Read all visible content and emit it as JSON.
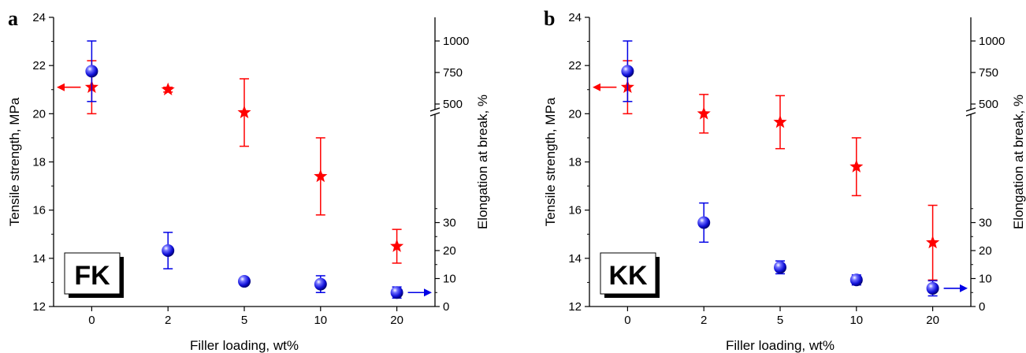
{
  "colors": {
    "tensile": "#ff0000",
    "elongation": "#0000e6",
    "axis": "#000000"
  },
  "chart_data": [
    {
      "type": "scatter",
      "panel_label": "a",
      "box_label": "FK",
      "categories": [
        "0",
        "2",
        "5",
        "10",
        "20"
      ],
      "xlabel": "Filler loading, wt%",
      "ylabel": "Tensile strength, MPa",
      "y2label": "Elongation at break, %",
      "ylim": [
        12,
        24
      ],
      "yticks": [
        "12",
        "14",
        "16",
        "18",
        "20",
        "22",
        "24"
      ],
      "y2_lower": {
        "range": [
          0,
          40
        ],
        "ticks": [
          "0",
          "10",
          "20",
          "30"
        ]
      },
      "y2_upper": {
        "range": [
          500,
          1000
        ],
        "ticks": [
          "500",
          "750",
          "1000"
        ]
      },
      "y2_axis_break": true,
      "series": [
        {
          "marker": "star",
          "axis": "left",
          "color": "#ff0000",
          "values": [
            21.1,
            21.0,
            20.05,
            17.4,
            14.5
          ],
          "errors": [
            1.1,
            0.1,
            1.4,
            1.6,
            0.7
          ]
        },
        {
          "marker": "sphere",
          "axis": "right",
          "color": "#0000e6",
          "values": [
            760,
            20,
            9,
            8,
            5
          ],
          "errors": [
            240,
            6.5,
            1.2,
            3,
            2
          ]
        }
      ],
      "arrows": [
        {
          "series": 0,
          "direction": "left"
        },
        {
          "series": 1,
          "direction": "right"
        }
      ]
    },
    {
      "type": "scatter",
      "panel_label": "b",
      "box_label": "KK",
      "categories": [
        "0",
        "2",
        "5",
        "10",
        "20"
      ],
      "xlabel": "Filler loading, wt%",
      "ylabel": "Tensile strength, MPa",
      "y2label": "Elongation at break, %",
      "ylim": [
        12,
        24
      ],
      "yticks": [
        "12",
        "14",
        "16",
        "18",
        "20",
        "22",
        "24"
      ],
      "y2_lower": {
        "range": [
          0,
          40
        ],
        "ticks": [
          "0",
          "10",
          "20",
          "30"
        ]
      },
      "y2_upper": {
        "range": [
          500,
          1000
        ],
        "ticks": [
          "500",
          "750",
          "1000"
        ]
      },
      "y2_axis_break": true,
      "series": [
        {
          "marker": "star",
          "axis": "left",
          "color": "#ff0000",
          "values": [
            21.1,
            20.0,
            19.65,
            17.8,
            14.65
          ],
          "errors": [
            1.1,
            0.8,
            1.1,
            1.2,
            1.55
          ]
        },
        {
          "marker": "sphere",
          "axis": "right",
          "color": "#0000e6",
          "values": [
            760,
            30,
            14,
            9.5,
            6.5
          ],
          "errors": [
            240,
            7,
            2.3,
            1.8,
            2.7
          ]
        }
      ],
      "arrows": [
        {
          "series": 0,
          "direction": "left"
        },
        {
          "series": 1,
          "direction": "right"
        }
      ]
    }
  ]
}
